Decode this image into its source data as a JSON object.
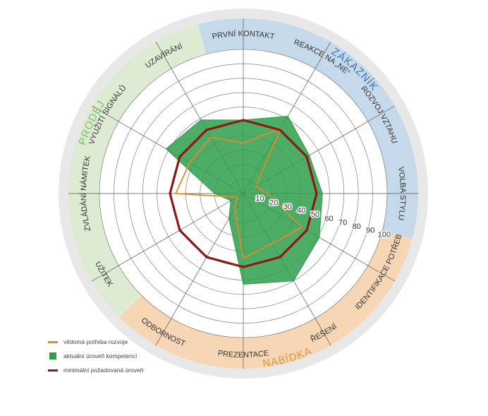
{
  "chart_data": {
    "type": "radar",
    "categories": [
      "PRVNÍ KONTAKT",
      "REAKCE NA „NE“",
      "ROZVOJ VZTAHU",
      "VOLBA STYLU",
      "IDENTIFIKACE POTŘEB",
      "ŘEŠENÍ",
      "PREZENTACE",
      "ODBORNOST",
      "UŽITEK",
      "ZVLÁDÁNÍ NÁMITEK",
      "VYUŽITÍ SIGNÁLŮ",
      "UZAVÍRÁNÍ"
    ],
    "rlim": [
      0,
      100
    ],
    "ticks": [
      "10",
      "20",
      "30",
      "40",
      "50",
      "60",
      "70",
      "80",
      "90",
      "100"
    ],
    "grid": true,
    "sectors": [
      {
        "label": "ZÁKAZNÍK",
        "color": "#3a78b4",
        "fill": "#c5d9ea",
        "from": "PRVNÍ KONTAKT",
        "to": "VOLBA STYLU"
      },
      {
        "label": "NABÍDKA",
        "color": "#e8943a",
        "fill": "#f6d6b5",
        "from": "IDENTIFIKACE POTŘEB",
        "to": "ODBORNOST"
      },
      {
        "label": "PRODEJ",
        "color": "#7dbf6c",
        "fill": "#dcebd2",
        "from": "UŽITEK",
        "to": "UZAVÍRÁNÍ"
      }
    ],
    "series": [
      {
        "name": "aktuální úroveň kompetencí",
        "style": "fill",
        "color": "#2e9e4a",
        "values": [
          51,
          62,
          53,
          55,
          61,
          70,
          63,
          20,
          10,
          20,
          62,
          59
        ]
      },
      {
        "name": "vědomá potřeba rozvoje",
        "style": "line",
        "color": "#e48a2c",
        "values": [
          35,
          52,
          10,
          17,
          47,
          40,
          45,
          12,
          5,
          47,
          43,
          45
        ]
      },
      {
        "name": "minimální požadovaná úroveň",
        "style": "line",
        "color": "#8b1a12",
        "values": [
          51,
          51,
          51,
          51,
          51,
          51,
          51,
          51,
          51,
          51,
          51,
          51
        ]
      }
    ],
    "legend_position": "bottom-left"
  },
  "legend": {
    "items": [
      {
        "label": "vědomá potřeba rozvoje",
        "color": "#e48a2c",
        "kind": "line"
      },
      {
        "label": "aktuální úroveň kompetencí",
        "color": "#2e9e4a",
        "kind": "box"
      },
      {
        "label": "minimální požadovaná úroveň",
        "color": "#8b1a12",
        "kind": "line"
      }
    ]
  }
}
